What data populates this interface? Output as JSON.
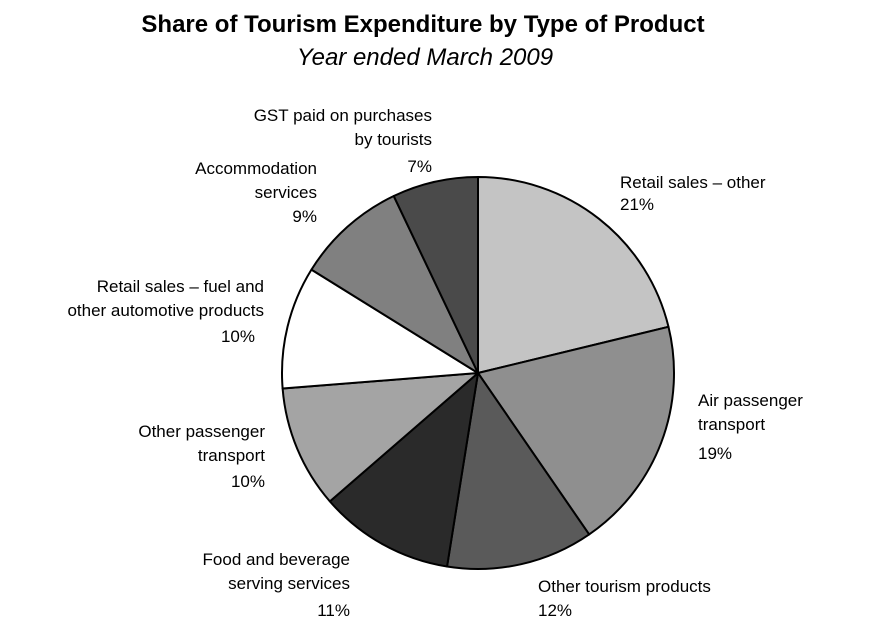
{
  "chart_data": {
    "type": "pie",
    "title": "Share of Tourism Expenditure by Type of Product",
    "subtitle": "Year ended March 2009",
    "start_angle_deg": 0,
    "direction": "clockwise",
    "slices": [
      {
        "name": "Retail sales – other",
        "label_lines": [
          "Retail sales – other"
        ],
        "value": 21,
        "value_label": "21%",
        "color": "#c4c4c4"
      },
      {
        "name": "Air passenger transport",
        "label_lines": [
          "Air passenger",
          "transport"
        ],
        "value": 19,
        "value_label": "19%",
        "color": "#8f8f8f"
      },
      {
        "name": "Other tourism products",
        "label_lines": [
          "Other tourism products"
        ],
        "value": 12,
        "value_label": "12%",
        "color": "#5a5a5a"
      },
      {
        "name": "Food and beverage serving services",
        "label_lines": [
          "Food and beverage",
          "serving services"
        ],
        "value": 11,
        "value_label": "11%",
        "color": "#2a2a2a"
      },
      {
        "name": "Other passenger transport",
        "label_lines": [
          "Other passenger",
          "transport"
        ],
        "value": 10,
        "value_label": "10%",
        "color": "#a4a4a4"
      },
      {
        "name": "Retail sales – fuel and other automotive products",
        "label_lines": [
          "Retail sales – fuel and",
          "other automotive products"
        ],
        "value": 10,
        "value_label": "10%",
        "color": "#ffffff"
      },
      {
        "name": "Accommodation services",
        "label_lines": [
          "Accommodation",
          "services"
        ],
        "value": 9,
        "value_label": "9%",
        "color": "#808080"
      },
      {
        "name": "GST paid on purchases by tourists",
        "label_lines": [
          "GST paid on purchases",
          "by tourists"
        ],
        "value": 7,
        "value_label": "7%",
        "color": "#4a4a4a"
      }
    ]
  }
}
